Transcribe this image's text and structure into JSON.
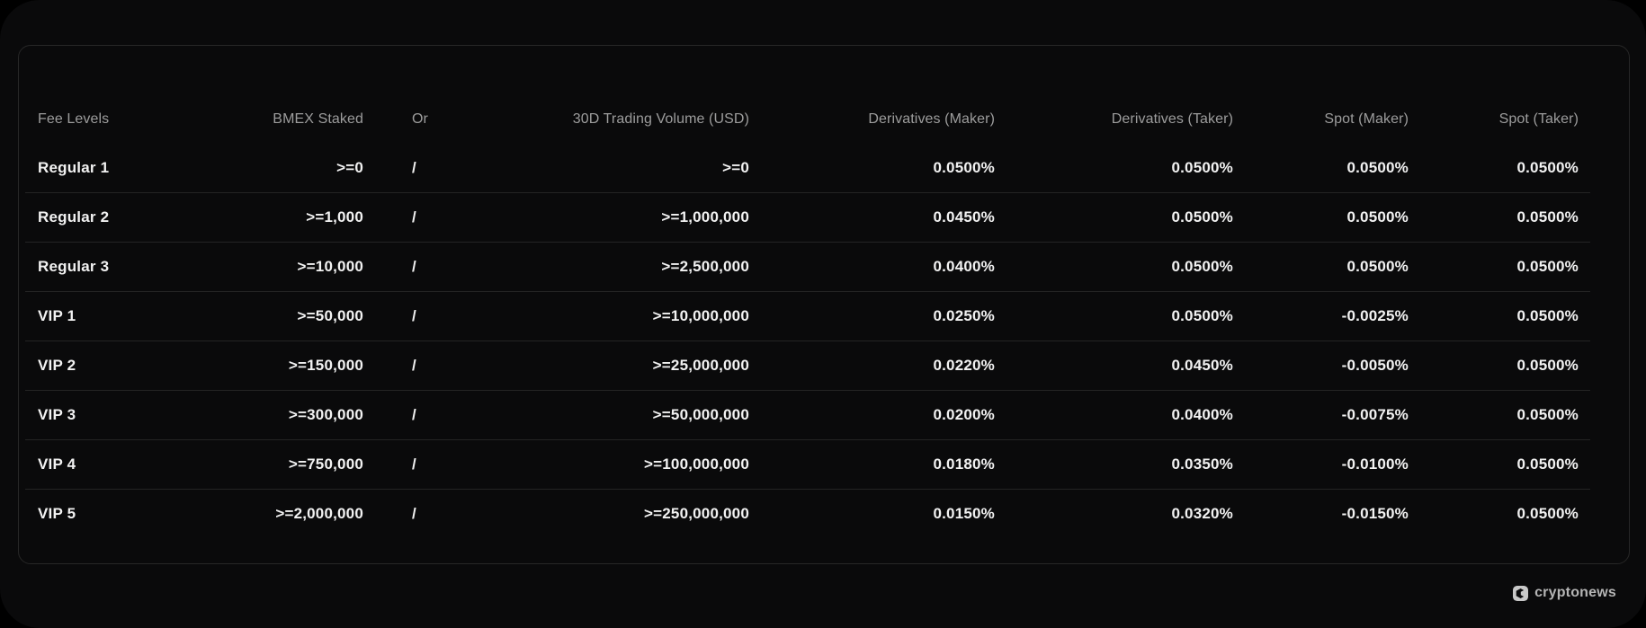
{
  "chart_data": {
    "type": "table",
    "title": "",
    "columns": [
      {
        "label": "Fee Levels",
        "align": "left"
      },
      {
        "label": "BMEX Staked",
        "align": "right"
      },
      {
        "label": "Or",
        "align": "left"
      },
      {
        "label": "30D Trading Volume (USD)",
        "align": "right"
      },
      {
        "label": "Derivatives (Maker)",
        "align": "right"
      },
      {
        "label": "Derivatives (Taker)",
        "align": "right"
      },
      {
        "label": "Spot (Maker)",
        "align": "right"
      },
      {
        "label": "Spot (Taker)",
        "align": "right"
      }
    ],
    "rows": [
      [
        "Regular 1",
        ">=0",
        "/",
        ">=0",
        "0.0500%",
        "0.0500%",
        "0.0500%",
        "0.0500%"
      ],
      [
        "Regular 2",
        ">=1,000",
        "/",
        ">=1,000,000",
        "0.0450%",
        "0.0500%",
        "0.0500%",
        "0.0500%"
      ],
      [
        "Regular 3",
        ">=10,000",
        "/",
        ">=2,500,000",
        "0.0400%",
        "0.0500%",
        "0.0500%",
        "0.0500%"
      ],
      [
        "VIP 1",
        ">=50,000",
        "/",
        ">=10,000,000",
        "0.0250%",
        "0.0500%",
        "-0.0025%",
        "0.0500%"
      ],
      [
        "VIP 2",
        ">=150,000",
        "/",
        ">=25,000,000",
        "0.0220%",
        "0.0450%",
        "-0.0050%",
        "0.0500%"
      ],
      [
        "VIP 3",
        ">=300,000",
        "/",
        ">=50,000,000",
        "0.0200%",
        "0.0400%",
        "-0.0075%",
        "0.0500%"
      ],
      [
        "VIP 4",
        ">=750,000",
        "/",
        ">=100,000,000",
        "0.0180%",
        "0.0350%",
        "-0.0100%",
        "0.0500%"
      ],
      [
        "VIP 5",
        ">=2,000,000",
        "/",
        ">=250,000,000",
        "0.0150%",
        "0.0320%",
        "-0.0150%",
        "0.0500%"
      ]
    ]
  },
  "branding": {
    "logo_text": "cryptonews",
    "logo_icon": "cryptonews-icon"
  },
  "colors": {
    "background": "#0a0a0b",
    "card_border": "#272727",
    "row_separator": "#242424",
    "header_text": "#9d9d9d",
    "cell_text": "#f2f2f2",
    "brand_text": "#b5b5b5",
    "brand_icon_bg": "#c8c8c8"
  }
}
